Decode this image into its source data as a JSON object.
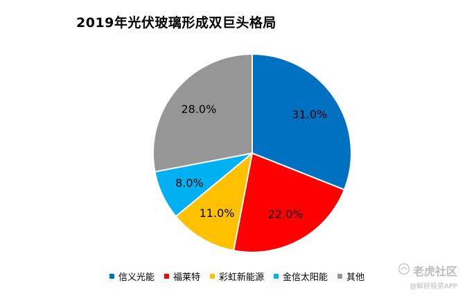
{
  "chart_data": {
    "type": "pie",
    "title": "2019年光伏玻璃形成双巨头格局",
    "start_angle_deg": 0,
    "direction": "clockwise",
    "slices": [
      {
        "name": "信义光能",
        "value": 31.0,
        "label": "31.0%",
        "color": "#0070C0"
      },
      {
        "name": "福莱特",
        "value": 22.0,
        "label": "22.0%",
        "color": "#FF0000"
      },
      {
        "name": "彩虹新能源",
        "value": 11.0,
        "label": "11.0%",
        "color": "#FFC000"
      },
      {
        "name": "金信太阳能",
        "value": 8.0,
        "label": "8.0%",
        "color": "#00B0F0"
      },
      {
        "name": "其他",
        "value": 28.0,
        "label": "28.0%",
        "color": "#969696"
      }
    ],
    "legend_position": "bottom"
  },
  "watermark": {
    "main": "老虎社区",
    "sub": "@解析投资APP",
    "icon": "tiger-logo-icon"
  }
}
